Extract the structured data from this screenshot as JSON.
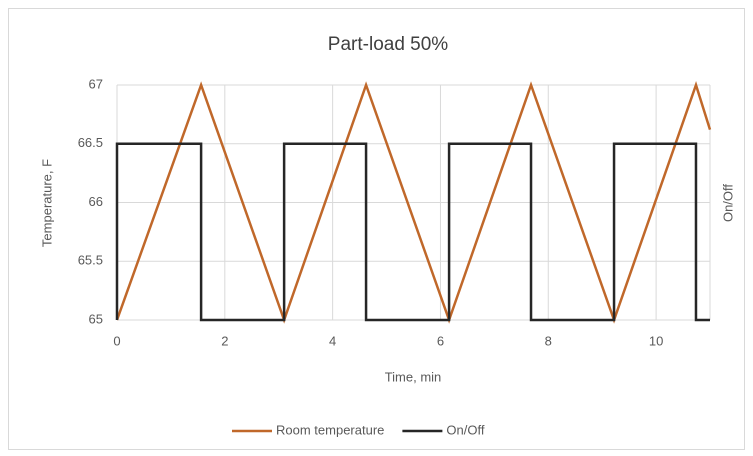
{
  "chart_data": {
    "type": "line",
    "title": "Part-load 50%",
    "xlabel": "Time, min",
    "ylabel": "Temperature, F",
    "y2label": "On/Off",
    "xlim": [
      0,
      11
    ],
    "xticks": [
      0,
      2,
      4,
      6,
      8,
      10
    ],
    "ylim": [
      65,
      67
    ],
    "yticks": [
      65,
      65.5,
      66,
      66.5,
      67
    ],
    "y2lim": [
      0,
      1.333
    ],
    "grid": true,
    "legend": "bottom",
    "series": [
      {
        "name": "Room temperature",
        "color": "#c0682a",
        "x": [
          0,
          1.56,
          3.1,
          4.62,
          6.16,
          7.68,
          9.22,
          10.74,
          11
        ],
        "values": [
          65,
          67,
          65,
          67,
          65,
          67,
          65,
          67,
          66.62
        ]
      },
      {
        "name": "On/Off",
        "color": "#262626",
        "axis": "y2",
        "x": [
          0,
          0,
          1.56,
          1.56,
          3.1,
          3.1,
          4.62,
          4.62,
          6.16,
          6.16,
          7.68,
          7.68,
          9.22,
          9.22,
          10.74,
          10.74,
          11
        ],
        "values": [
          0,
          1,
          1,
          0,
          0,
          1,
          1,
          0,
          0,
          1,
          1,
          0,
          0,
          1,
          1,
          0,
          0
        ]
      }
    ]
  }
}
